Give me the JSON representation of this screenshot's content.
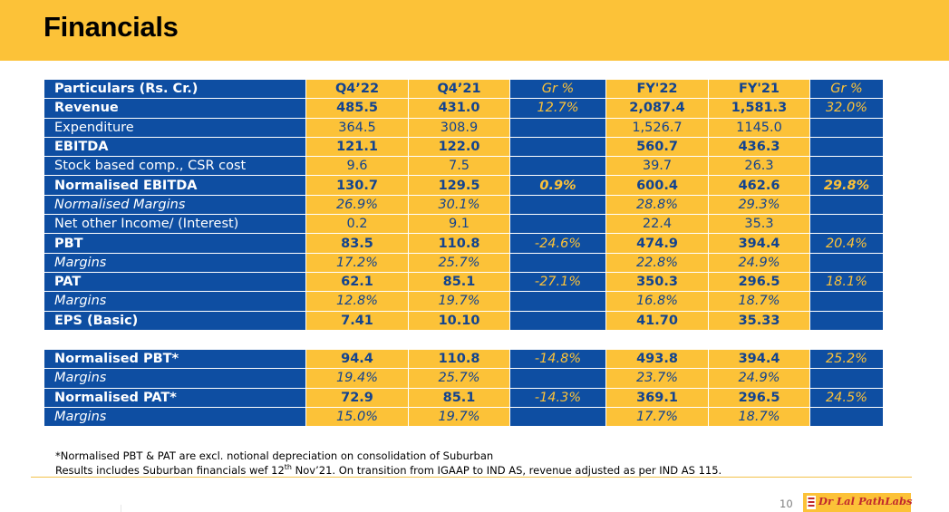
{
  "header": {
    "title": "Financials"
  },
  "table": {
    "columns": [
      "Particulars (Rs. Cr.)",
      "Q4’22",
      "Q4’21",
      "Gr %",
      "FY'22",
      "FY'21",
      "Gr %"
    ],
    "rows": [
      [
        "Revenue",
        "485.5",
        "431.0",
        "12.7%",
        "2,087.4",
        "1,581.3",
        "32.0%"
      ],
      [
        "Expenditure",
        "364.5",
        "308.9",
        "",
        "1,526.7",
        "1145.0",
        ""
      ],
      [
        "EBITDA",
        "121.1",
        "122.0",
        "",
        "560.7",
        "436.3",
        ""
      ],
      [
        "Stock based comp., CSR cost",
        "9.6",
        "7.5",
        "",
        "39.7",
        "26.3",
        ""
      ],
      [
        "Normalised EBITDA",
        "130.7",
        "129.5",
        "0.9%",
        "600.4",
        "462.6",
        "29.8%"
      ],
      [
        "Normalised Margins",
        "26.9%",
        "30.1%",
        "",
        "28.8%",
        "29.3%",
        ""
      ],
      [
        "Net other Income/ (Interest)",
        "0.2",
        "9.1",
        "",
        "22.4",
        "35.3",
        ""
      ],
      [
        "PBT",
        "83.5",
        "110.8",
        "-24.6%",
        "474.9",
        "394.4",
        "20.4%"
      ],
      [
        "Margins",
        "17.2%",
        "25.7%",
        "",
        "22.8%",
        "24.9%",
        ""
      ],
      [
        "PAT",
        "62.1",
        "85.1",
        "-27.1%",
        "350.3",
        "296.5",
        "18.1%"
      ],
      [
        "Margins",
        "12.8%",
        "19.7%",
        "",
        "16.8%",
        "18.7%",
        ""
      ],
      [
        "EPS (Basic)",
        "7.41",
        "10.10",
        "",
        "41.70",
        "35.33",
        ""
      ]
    ],
    "normalised_rows": [
      [
        "Normalised PBT*",
        "94.4",
        "110.8",
        "-14.8%",
        "493.8",
        "394.4",
        "25.2%"
      ],
      [
        "Margins",
        "19.4%",
        "25.7%",
        "",
        "23.7%",
        "24.9%",
        ""
      ],
      [
        "Normalised PAT*",
        "72.9",
        "85.1",
        "-14.3%",
        "369.1",
        "296.5",
        "24.5%"
      ],
      [
        "Margins",
        "15.0%",
        "19.7%",
        "",
        "17.7%",
        "18.7%",
        ""
      ]
    ]
  },
  "notes": {
    "line1": "*Normalised  PBT & PAT are excl. notional depreciation on consolidation of Suburban",
    "line2_prefix": "Results includes Suburban financials wef 12",
    "line2_sup": "th",
    "line2_suffix": " Nov’21. On transition from IGAAP to IND AS, revenue adjusted as per IND AS 115."
  },
  "footer": {
    "page_number": "10",
    "logo_text": "Dr Lal PathLabs"
  },
  "colors": {
    "gold": "#fcc238",
    "blue": "#0e4ea2",
    "text_blue": "#12438f",
    "logo_red": "#c0282d"
  }
}
